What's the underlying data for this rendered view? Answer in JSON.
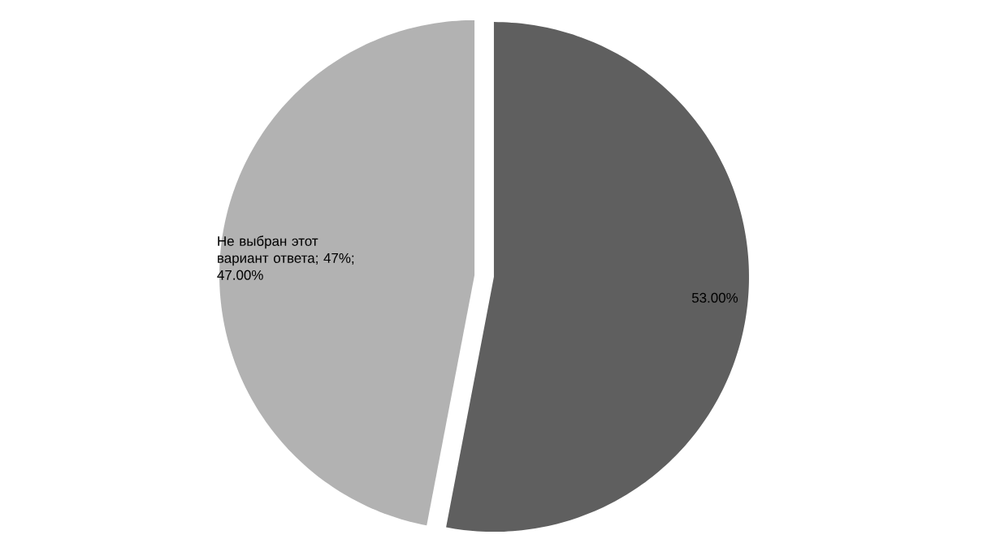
{
  "chart_data": {
    "type": "pie",
    "categories": [
      null,
      null
    ],
    "values": [
      53,
      47
    ],
    "colors": [
      "#5f5f5f",
      "#b2b2b2"
    ],
    "value_labels": [
      "53.00%",
      "Не выбран этот вариант ответа; 47%; 47.00%"
    ]
  }
}
